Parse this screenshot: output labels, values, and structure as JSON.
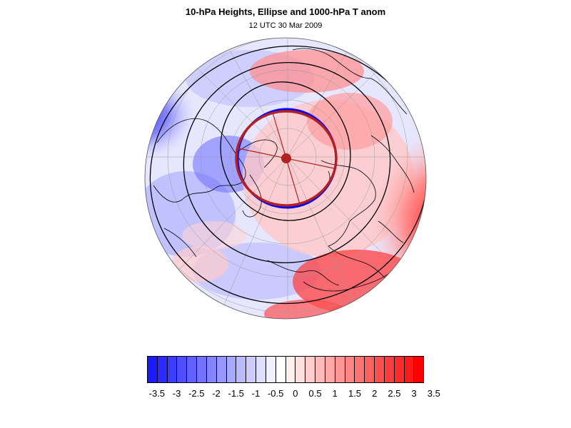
{
  "title": "10-hPa Heights, Ellipse and 1000-hPa T anom",
  "subtitle": "12 UTC 30 Mar 2009",
  "map": {
    "projection": "north-polar-stereographic",
    "ellipse_color": "#b22222",
    "contour_color": "#000000"
  },
  "colorbar": {
    "colors": [
      "#1a1aff",
      "#2b2bff",
      "#3c3cff",
      "#4e4eff",
      "#6060ff",
      "#7272ff",
      "#8484ff",
      "#9696ff",
      "#a8a8ff",
      "#babaff",
      "#ccccff",
      "#dedeff",
      "#f0f0ff",
      "#ffffff",
      "#fff0f0",
      "#ffdede",
      "#ffcccc",
      "#ffbaba",
      "#ffa8a8",
      "#ff9696",
      "#ff8484",
      "#ff7272",
      "#ff6060",
      "#ff4e4e",
      "#ff3c3c",
      "#ff2b2b",
      "#ff1a1a",
      "#ff0000"
    ],
    "labels": [
      "-3.5",
      "-3",
      "-2.5",
      "-2",
      "-1.5",
      "-1",
      "-0.5",
      "0",
      "0.5",
      "1",
      "1.5",
      "2",
      "2.5",
      "3",
      "3.5"
    ]
  }
}
